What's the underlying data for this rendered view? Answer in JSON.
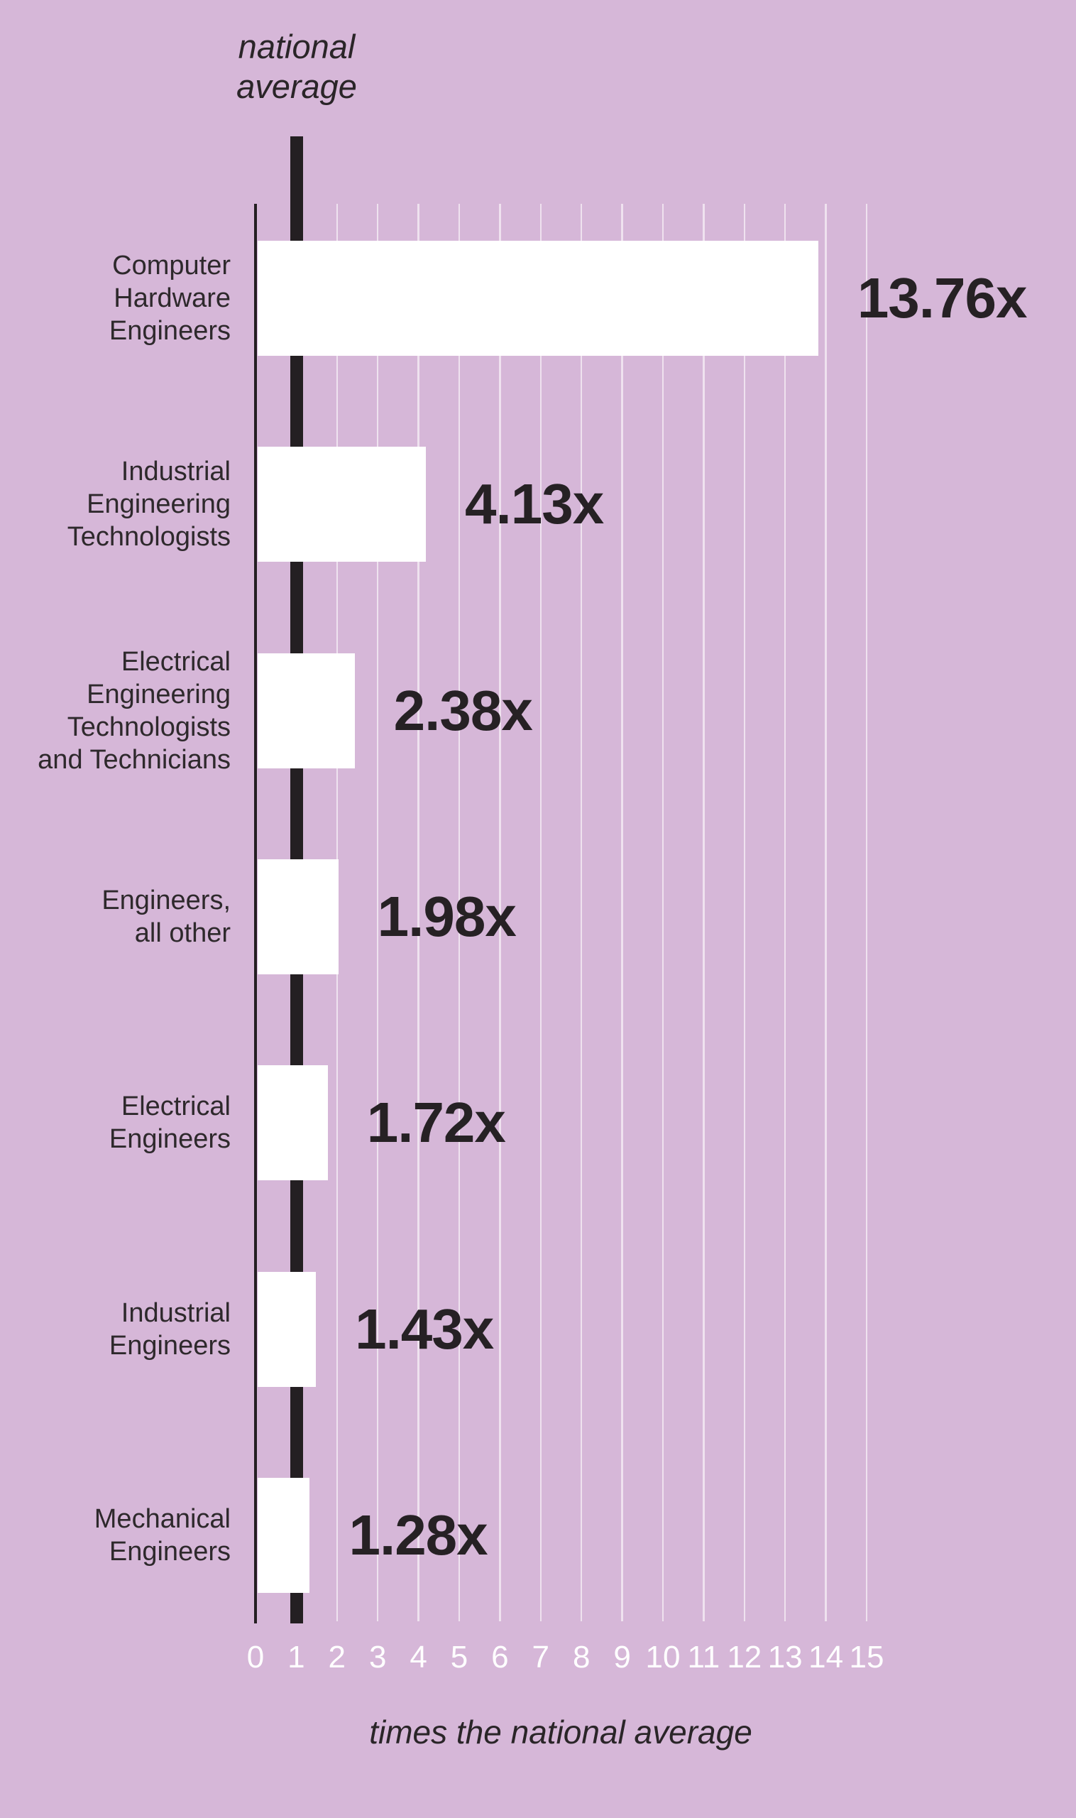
{
  "chart_data": {
    "type": "bar",
    "orientation": "horizontal",
    "top_annotation": "national\naverage",
    "xlabel": "times the national average",
    "xlim": [
      0,
      15
    ],
    "x_ticks": [
      0,
      1,
      2,
      3,
      4,
      5,
      6,
      7,
      8,
      9,
      10,
      11,
      12,
      13,
      14,
      15
    ],
    "x_tick_labels": [
      "0",
      "1",
      "2",
      "3",
      "4",
      "5",
      "6",
      "7",
      "8",
      "9",
      "10",
      "11",
      "12",
      "13",
      "14",
      "15"
    ],
    "reference_line_value": 1,
    "grid": "vertical-white-lines",
    "legend": "none",
    "categories": [
      "Computer Hardware Engineers",
      "Industrial Engineering Technologists",
      "Electrical Engineering Technologists and Technicians",
      "Engineers, all other",
      "Electrical Engineers",
      "Industrial Engineers",
      "Mechanical Engineers"
    ],
    "values": [
      13.76,
      4.13,
      2.38,
      1.98,
      1.72,
      1.43,
      1.28
    ],
    "rows": [
      {
        "label": "Computer\nHardware\nEngineers",
        "value": 13.76,
        "value_label": "13.76x"
      },
      {
        "label": "Industrial\nEngineering\nTechnologists",
        "value": 4.13,
        "value_label": "4.13x"
      },
      {
        "label": "Electrical\nEngineering\nTechnologists\nand Technicians",
        "value": 2.38,
        "value_label": "2.38x"
      },
      {
        "label": "Engineers,\nall other",
        "value": 1.98,
        "value_label": "1.98x"
      },
      {
        "label": "Electrical\nEngineers",
        "value": 1.72,
        "value_label": "1.72x"
      },
      {
        "label": "Industrial\nEngineers",
        "value": 1.43,
        "value_label": "1.43x"
      },
      {
        "label": "Mechanical\nEngineers",
        "value": 1.28,
        "value_label": "1.28x"
      }
    ],
    "colors": {
      "background": "#d6b7d8",
      "bar_fill": "#ffffff",
      "ink": "#241f22",
      "tick_text": "#ffffff",
      "gridline": "rgba(255,255,255,0.6)"
    }
  }
}
